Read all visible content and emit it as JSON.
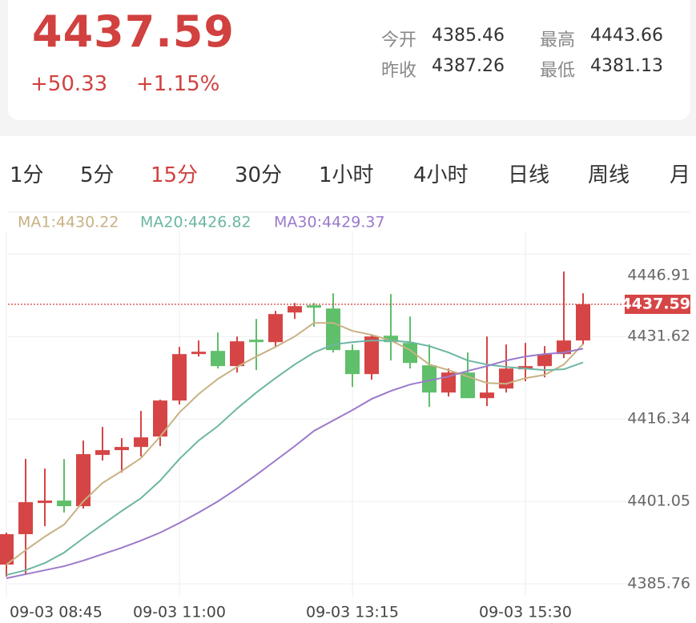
{
  "header": {
    "price": "4437.59",
    "change": "+50.33",
    "change_pct": "+1.15%",
    "stats": [
      {
        "label": "今开",
        "value": "4385.46"
      },
      {
        "label": "最高",
        "value": "4443.66"
      },
      {
        "label": "昨收",
        "value": "4387.26"
      },
      {
        "label": "最低",
        "value": "4381.13"
      }
    ]
  },
  "tabs": {
    "items": [
      "1分",
      "5分",
      "15分",
      "30分",
      "1小时",
      "4小时",
      "日线",
      "周线",
      "月"
    ],
    "active": 2
  },
  "chart_data": {
    "type": "candlestick",
    "categories": [
      "09-03 08:45",
      null,
      null,
      null,
      null,
      null,
      null,
      null,
      null,
      "09-03 11:00",
      null,
      null,
      null,
      null,
      null,
      null,
      null,
      null,
      "09-03 13:15",
      null,
      null,
      null,
      null,
      null,
      null,
      null,
      null,
      "09-03 15:30",
      null,
      null,
      null
    ],
    "open": [
      4389.33,
      4394.97,
      4400.75,
      4401.2,
      4400.16,
      4409.66,
      4410.55,
      4411.14,
      4413.07,
      4419.75,
      4428.36,
      4428.95,
      4426.13,
      4431.03,
      4430.58,
      4436.07,
      4437.41,
      4436.81,
      4429.1,
      4424.65,
      4431.77,
      4430.43,
      4426.28,
      4421.23,
      4424.94,
      4420.19,
      4421.97,
      4425.54,
      4426.13,
      4428.36,
      4430.88
    ],
    "close": [
      4394.97,
      4400.9,
      4401.2,
      4400.16,
      4409.81,
      4410.55,
      4411.14,
      4412.92,
      4419.75,
      4428.36,
      4428.8,
      4426.13,
      4430.73,
      4430.58,
      4435.78,
      4437.26,
      4436.96,
      4429.1,
      4424.65,
      4431.62,
      4430.58,
      4426.72,
      4421.23,
      4424.94,
      4420.19,
      4421.23,
      4425.68,
      4426.13,
      4428.36,
      4430.88,
      4437.59
    ],
    "high": [
      4395.26,
      4408.91,
      4407.13,
      4408.91,
      4412.33,
      4414.85,
      4412.77,
      4417.82,
      4419.9,
      4429.69,
      4430.88,
      4432.36,
      4431.62,
      4434.88,
      4436.37,
      4437.85,
      4437.85,
      4439.63,
      4430.14,
      4431.92,
      4439.49,
      4435.33,
      4430.14,
      4425.68,
      4428.65,
      4431.62,
      4430.14,
      4430.43,
      4429.84,
      4443.66,
      4439.63
    ],
    "low": [
      4387.1,
      4387.4,
      4396.45,
      4398.97,
      4399.71,
      4408.62,
      4406.39,
      4409.36,
      4411.29,
      4419.01,
      4427.91,
      4425.68,
      4424.94,
      4425.39,
      4429.69,
      4434.88,
      4433.4,
      4428.65,
      4422.27,
      4423.61,
      4427.17,
      4425.68,
      4418.56,
      4420.49,
      4420.19,
      4418.71,
      4421.23,
      4423.31,
      4424.05,
      4427.61,
      4430.14
    ],
    "up_color": "#d64545",
    "down_color": "#5fbf6a",
    "series": [
      {
        "name": "MA1:4430.22",
        "color": "#c8b184",
        "values": [
          4389.33,
          4392.0,
          4394.52,
          4396.75,
          4401.05,
          4404.46,
          4406.69,
          4409.06,
          4413.07,
          4417.52,
          4420.94,
          4423.75,
          4425.98,
          4427.91,
          4429.69,
          4431.62,
          4434.14,
          4434.14,
          4432.66,
          4431.92,
          4430.88,
          4429.1,
          4426.43,
          4425.39,
          4424.2,
          4423.01,
          4422.86,
          4423.9,
          4424.5,
          4426.43,
          4430.22
        ]
      },
      {
        "name": "MA20:4426.82",
        "color": "#6db6a3",
        "values": [
          4387.4,
          4388.29,
          4389.62,
          4391.55,
          4394.22,
          4396.75,
          4399.27,
          4401.64,
          4404.91,
          4408.91,
          4412.33,
          4415.0,
          4418.26,
          4421.23,
          4423.9,
          4426.43,
          4428.65,
          4430.14,
          4430.58,
          4430.88,
          4430.88,
          4430.58,
          4429.84,
          4428.65,
          4427.17,
          4426.43,
          4425.98,
          4425.68,
          4425.39,
          4425.54,
          4426.82
        ]
      },
      {
        "name": "MA30:4429.37",
        "color": "#9b7acb",
        "values": [
          4386.8,
          4387.55,
          4388.29,
          4389.03,
          4390.07,
          4391.26,
          4392.44,
          4393.78,
          4395.26,
          4397.04,
          4398.97,
          4401.05,
          4403.42,
          4405.95,
          4408.62,
          4411.29,
          4414.11,
          4416.04,
          4417.97,
          4420.04,
          4421.53,
          4422.72,
          4423.46,
          4424.2,
          4425.24,
          4426.13,
          4427.17,
          4427.91,
          4428.36,
          4428.65,
          4429.37
        ]
      }
    ],
    "last_price": 4437.59,
    "ylim": [
      4383.4,
      4451.1
    ],
    "yticks": [
      4446.91,
      4431.62,
      4416.34,
      4401.05,
      4385.76
    ],
    "grid": true
  }
}
